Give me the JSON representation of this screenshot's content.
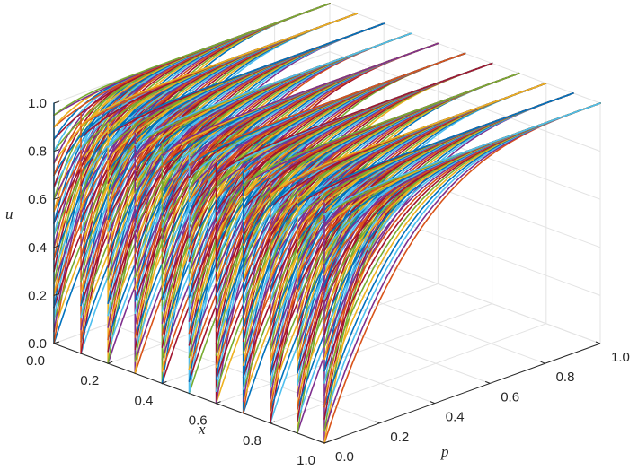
{
  "chart_data": {
    "type": "line",
    "projection": "3d",
    "title": "",
    "xlabel": "x",
    "ylabel": "p",
    "zlabel": "u",
    "xlim": [
      0,
      1
    ],
    "ylim": [
      0,
      1
    ],
    "zlim": [
      0,
      1
    ],
    "grid": true,
    "legend": "none",
    "x_ticks": [
      "0.0",
      "0.2",
      "0.4",
      "0.6",
      "0.8",
      "1.0"
    ],
    "p_ticks": [
      "0.0",
      "0.2",
      "0.4",
      "0.6",
      "0.8",
      "1.0"
    ],
    "u_ticks": [
      "0.0",
      "0.2",
      "0.4",
      "0.6",
      "0.8",
      "1.0"
    ],
    "colors": [
      "#0072BD",
      "#D95319",
      "#EDB120",
      "#7E2F8E",
      "#77AC30",
      "#4DBEEE",
      "#A2142F"
    ],
    "slice_x_values": [
      0.0,
      0.1,
      0.2,
      0.3,
      0.4,
      0.5,
      0.6,
      0.7,
      0.8,
      0.9,
      1.0
    ],
    "curve_family": {
      "description_of_values": "u(x,p) curves on each x-slice: u rises from its starting value at p=0 toward 1.0 at p=1",
      "start_u_values": [
        0.0,
        0.05,
        0.1,
        0.15,
        0.2,
        0.25,
        0.3,
        0.35,
        0.4,
        0.45,
        0.5,
        0.55,
        0.6,
        0.65,
        0.7,
        0.75,
        0.8,
        0.85,
        0.9,
        0.95
      ],
      "end_u": 1.0
    }
  }
}
